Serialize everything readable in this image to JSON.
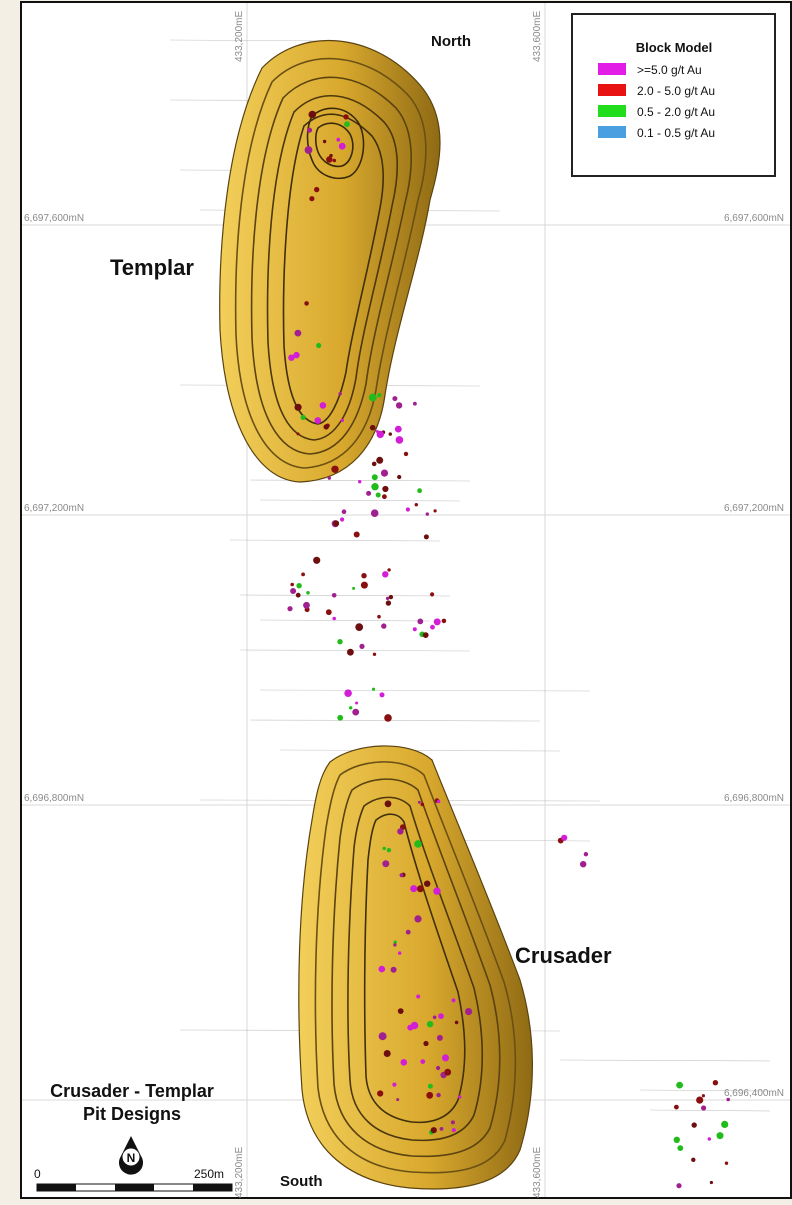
{
  "compass": {
    "north": "North",
    "south": "South"
  },
  "grid": {
    "eastings": [
      "433,200mE",
      "433,600mE"
    ],
    "northings": [
      "6,697,600mN",
      "6,697,200mN",
      "6,696,800mN",
      "6,696,400mN"
    ]
  },
  "pits": {
    "templar": "Templar",
    "crusader": "Crusader"
  },
  "title": {
    "line1": "Crusader - Templar",
    "line2": "Pit Designs"
  },
  "legend": {
    "title": "Block Model",
    "items": [
      {
        "label": ">=5.0 g/t Au",
        "color": "#e21ee6"
      },
      {
        "label": "2.0 - 5.0 g/t Au",
        "color": "#e81212"
      },
      {
        "label": "0.5 - 2.0 g/t Au",
        "color": "#22dd1c"
      },
      {
        "label": "0.1 - 0.5 g/t Au",
        "color": "#4a9fe0"
      }
    ]
  },
  "north_arrow": {
    "letter": "N",
    "icon": "north-arrow-icon"
  },
  "scale_bar": {
    "start": "0",
    "end": "250m"
  },
  "colors": {
    "pit_fill": "#e0b33a",
    "pit_dark": "#4a3a12",
    "background": "#ffffff",
    "frame": "#111111"
  }
}
